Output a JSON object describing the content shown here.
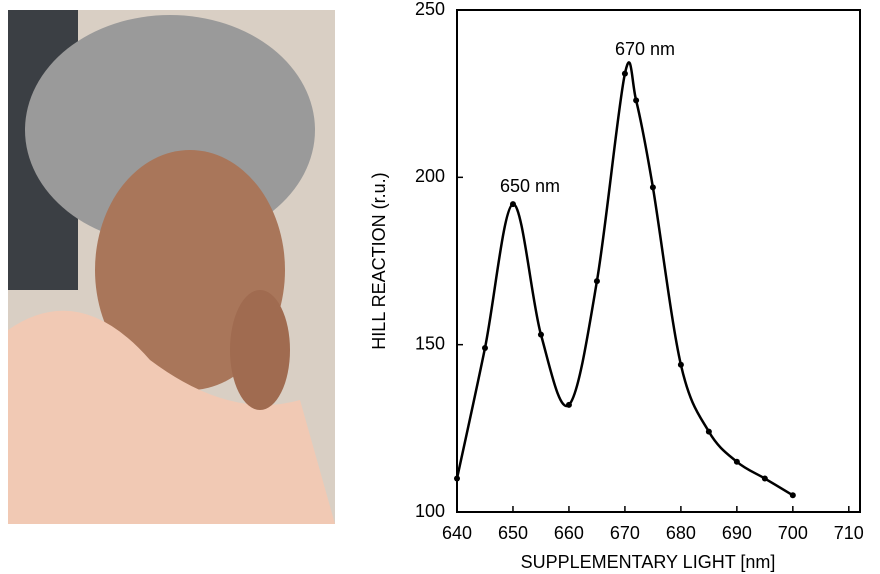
{
  "chart_data": {
    "type": "line",
    "x_label": "SUPPLEMENTARY LIGHT  [nm]",
    "y_label": "HILL REACTION (r.u.)",
    "annotations": [
      "650 nm",
      "670 nm"
    ],
    "x": [
      640,
      645,
      650,
      655,
      660,
      665,
      670,
      672,
      675,
      680,
      685,
      690,
      695,
      700
    ],
    "series": [
      {
        "color": "#000000",
        "values": [
          110,
          149,
          192,
          153,
          132,
          169,
          231,
          223,
          197,
          144,
          124,
          115,
          110,
          105
        ]
      }
    ],
    "xlim": [
      640,
      712
    ],
    "xticks": [
      640,
      650,
      660,
      670,
      680,
      690,
      700,
      710
    ],
    "ylim": [
      100,
      250
    ],
    "yticks": [
      100,
      150,
      200,
      250
    ],
    "grid": false
  }
}
